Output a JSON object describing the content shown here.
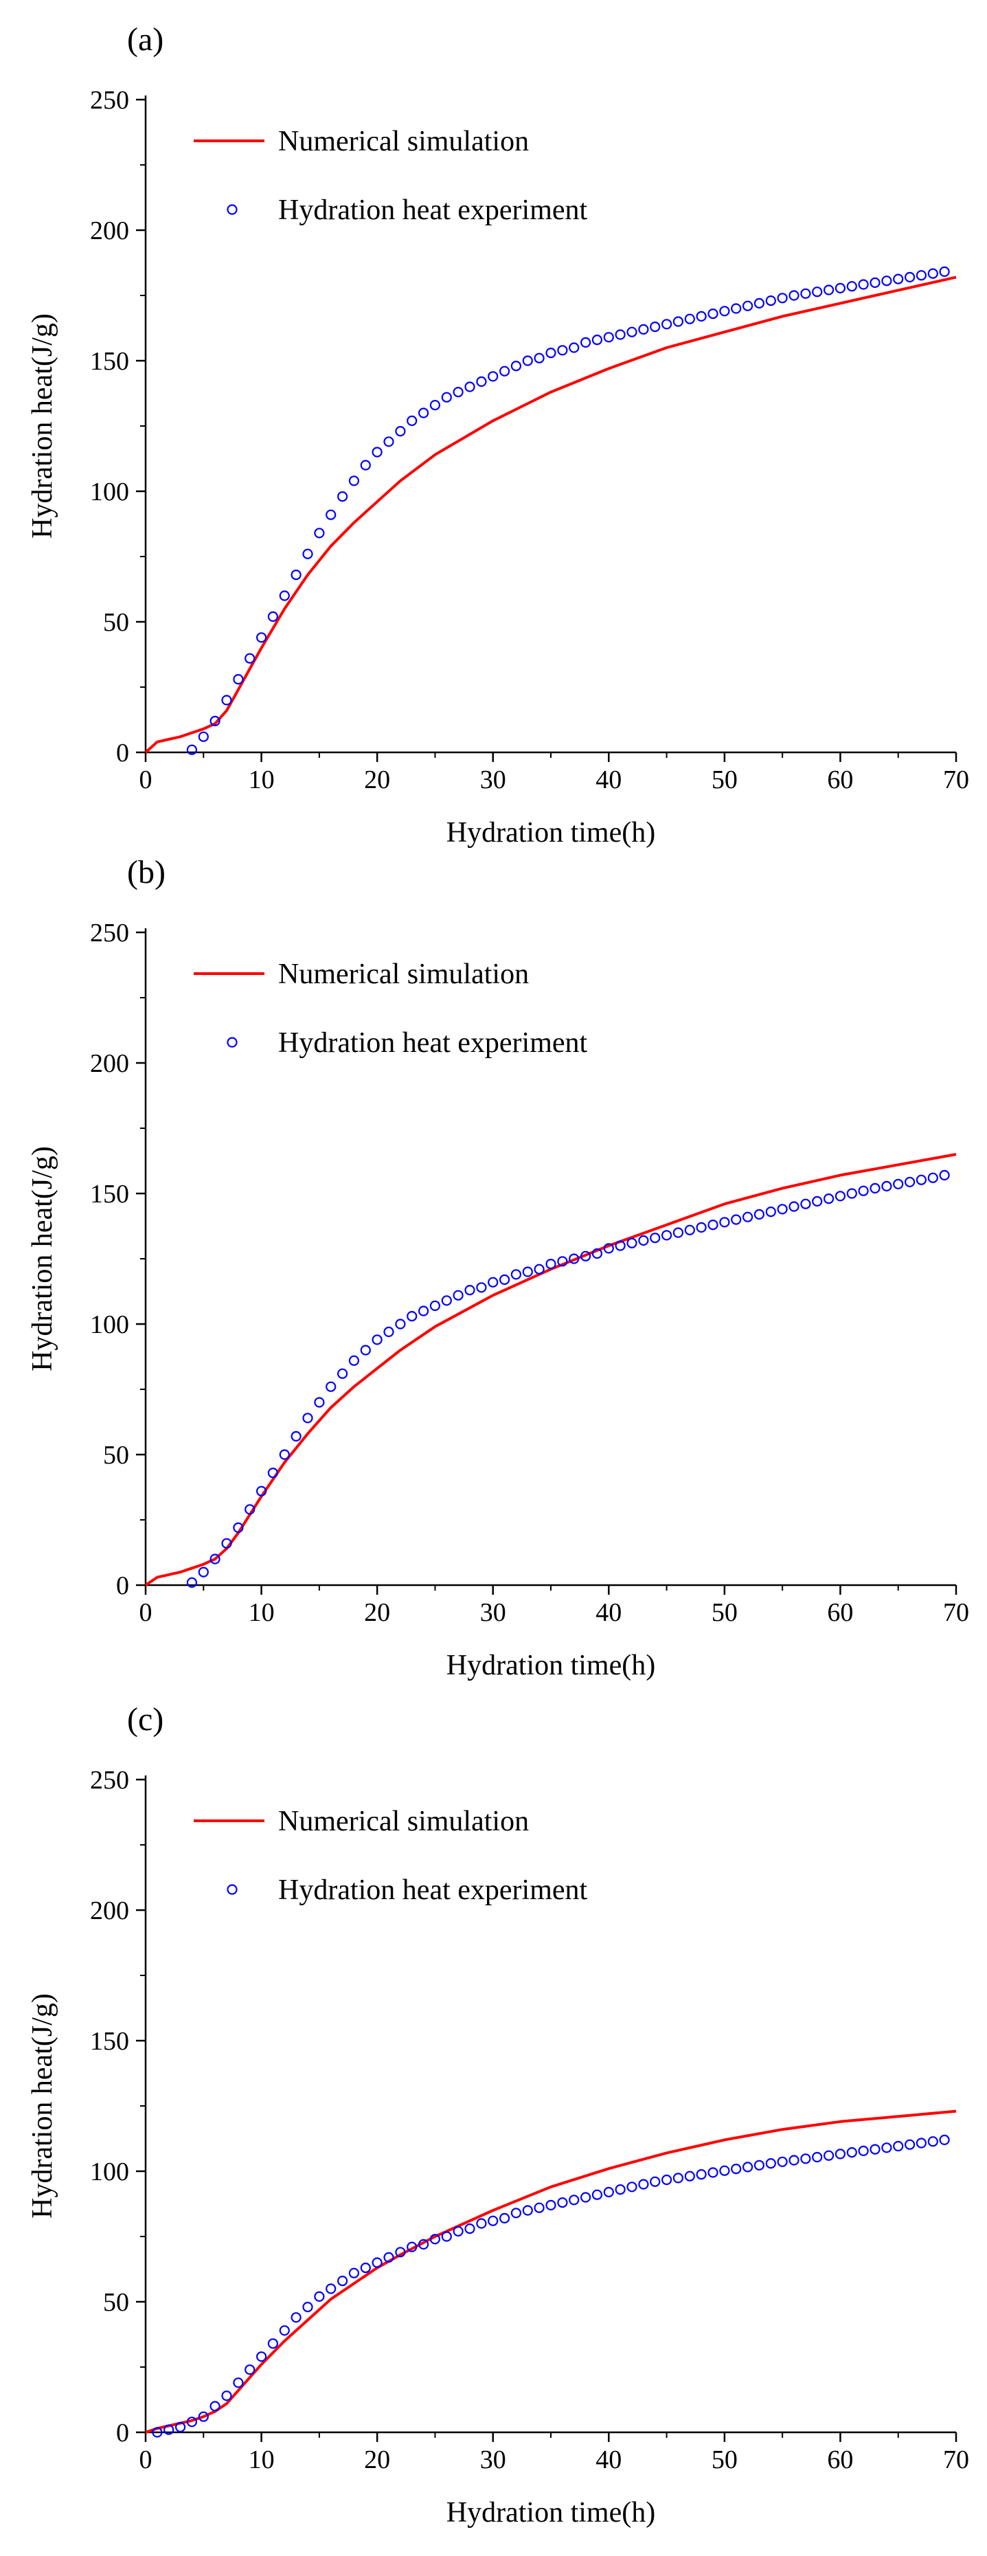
{
  "colors": {
    "simulation": "#ff0000",
    "experiment": "#0000ff",
    "axis": "#000000"
  },
  "chart_data": [
    {
      "panel_label": "(a)",
      "type": "line",
      "xlabel": "Hydration time(h)",
      "ylabel": "Hydration heat(J/g)",
      "xlim": [
        0,
        70
      ],
      "ylim": [
        0,
        250
      ],
      "xticks": [
        0,
        10,
        20,
        30,
        40,
        50,
        60,
        70
      ],
      "yticks": [
        0,
        50,
        100,
        150,
        200,
        250
      ],
      "legend_position": "top-left",
      "series": [
        {
          "name": "Numerical simulation",
          "style": "line",
          "x": [
            0,
            1,
            2,
            3,
            4,
            5,
            6,
            7,
            8,
            9,
            10,
            12,
            14,
            16,
            18,
            20,
            22,
            25,
            30,
            35,
            40,
            45,
            50,
            55,
            60,
            65,
            70
          ],
          "y": [
            0,
            4,
            5,
            6,
            7.5,
            9,
            11,
            16,
            24,
            32,
            40,
            55,
            68,
            79,
            88,
            96,
            104,
            114,
            127,
            138,
            147,
            155,
            161,
            167,
            172,
            177,
            182
          ]
        },
        {
          "name": "Hydration heat experiment",
          "style": "scatter",
          "x": [
            4,
            5,
            6,
            7,
            8,
            9,
            10,
            11,
            12,
            13,
            14,
            15,
            16,
            17,
            18,
            19,
            20,
            21,
            22,
            23,
            24,
            25,
            26,
            27,
            28,
            29,
            30,
            31,
            32,
            33,
            34,
            35,
            36,
            37,
            38,
            39,
            40,
            41,
            42,
            43,
            44,
            45,
            46,
            47,
            48,
            49,
            50,
            51,
            52,
            53,
            54,
            55,
            56,
            57,
            58,
            59,
            60,
            61,
            62,
            63,
            64,
            65,
            66,
            67,
            68,
            69
          ],
          "y": [
            1,
            6,
            12,
            20,
            28,
            36,
            44,
            52,
            60,
            68,
            76,
            84,
            91,
            98,
            104,
            110,
            115,
            119,
            123,
            127,
            130,
            133,
            136,
            138,
            140,
            142,
            144,
            146,
            148,
            150,
            151,
            153,
            154,
            155,
            157,
            158,
            159,
            160,
            161,
            162,
            163,
            164,
            165,
            166,
            167,
            168,
            169,
            170,
            171,
            172,
            173,
            174,
            175,
            175.7,
            176.4,
            177.1,
            177.8,
            178.5,
            179.2,
            179.9,
            180.6,
            181.3,
            182,
            182.7,
            183.4,
            184.1
          ]
        }
      ]
    },
    {
      "panel_label": "(b)",
      "type": "line",
      "xlabel": "Hydration time(h)",
      "ylabel": "Hydration heat(J/g)",
      "xlim": [
        0,
        70
      ],
      "ylim": [
        0,
        250
      ],
      "xticks": [
        0,
        10,
        20,
        30,
        40,
        50,
        60,
        70
      ],
      "yticks": [
        0,
        50,
        100,
        150,
        200,
        250
      ],
      "legend_position": "top-left",
      "series": [
        {
          "name": "Numerical simulation",
          "style": "line",
          "x": [
            0,
            1,
            2,
            3,
            4,
            5,
            6,
            7,
            8,
            9,
            10,
            12,
            14,
            16,
            18,
            20,
            22,
            25,
            30,
            35,
            40,
            45,
            50,
            55,
            60,
            65,
            70
          ],
          "y": [
            0,
            3,
            4,
            5,
            6.5,
            8,
            10,
            14,
            20,
            27,
            34,
            47,
            58,
            68,
            76,
            83,
            90,
            99,
            111,
            121,
            130,
            138,
            146,
            152,
            157,
            161,
            165
          ]
        },
        {
          "name": "Hydration heat experiment",
          "style": "scatter",
          "x": [
            4,
            5,
            6,
            7,
            8,
            9,
            10,
            11,
            12,
            13,
            14,
            15,
            16,
            17,
            18,
            19,
            20,
            21,
            22,
            23,
            24,
            25,
            26,
            27,
            28,
            29,
            30,
            31,
            32,
            33,
            34,
            35,
            36,
            37,
            38,
            39,
            40,
            41,
            42,
            43,
            44,
            45,
            46,
            47,
            48,
            49,
            50,
            51,
            52,
            53,
            54,
            55,
            56,
            57,
            58,
            59,
            60,
            61,
            62,
            63,
            64,
            65,
            66,
            67,
            68,
            69
          ],
          "y": [
            1,
            5,
            10,
            16,
            22,
            29,
            36,
            43,
            50,
            57,
            64,
            70,
            76,
            81,
            86,
            90,
            94,
            97,
            100,
            103,
            105,
            107,
            109,
            111,
            113,
            114,
            116,
            117,
            119,
            120,
            121,
            123,
            124,
            125,
            126,
            127,
            129,
            130,
            131,
            132,
            133,
            134,
            135,
            136,
            137,
            138,
            139,
            140,
            141,
            142,
            143,
            144,
            145,
            146,
            147,
            148,
            149,
            150,
            151,
            152,
            152.8,
            153.6,
            154.4,
            155.2,
            156,
            157
          ]
        }
      ]
    },
    {
      "panel_label": "(c)",
      "type": "line",
      "xlabel": "Hydration time(h)",
      "ylabel": "Hydration heat(J/g)",
      "xlim": [
        0,
        70
      ],
      "ylim": [
        0,
        250
      ],
      "xticks": [
        0,
        10,
        20,
        30,
        40,
        50,
        60,
        70
      ],
      "yticks": [
        0,
        50,
        100,
        150,
        200,
        250
      ],
      "legend_position": "top-left",
      "series": [
        {
          "name": "Numerical simulation",
          "style": "line",
          "x": [
            0,
            1,
            2,
            3,
            4,
            5,
            6,
            7,
            8,
            9,
            10,
            12,
            14,
            16,
            18,
            20,
            22,
            25,
            30,
            35,
            40,
            45,
            50,
            55,
            60,
            65,
            70
          ],
          "y": [
            0,
            1.5,
            2.5,
            3.5,
            4.5,
            6,
            8,
            11,
            16,
            21,
            26,
            35,
            43,
            51,
            57,
            63,
            68,
            75,
            85,
            94,
            101,
            107,
            112,
            116,
            119,
            121,
            123
          ]
        },
        {
          "name": "Hydration heat experiment",
          "style": "scatter",
          "x": [
            1,
            2,
            3,
            4,
            5,
            6,
            7,
            8,
            9,
            10,
            11,
            12,
            13,
            14,
            15,
            16,
            17,
            18,
            19,
            20,
            21,
            22,
            23,
            24,
            25,
            26,
            27,
            28,
            29,
            30,
            31,
            32,
            33,
            34,
            35,
            36,
            37,
            38,
            39,
            40,
            41,
            42,
            43,
            44,
            45,
            46,
            47,
            48,
            49,
            50,
            51,
            52,
            53,
            54,
            55,
            56,
            57,
            58,
            59,
            60,
            61,
            62,
            63,
            64,
            65,
            66,
            67,
            68,
            69
          ],
          "y": [
            0,
            1,
            2,
            4,
            6,
            10,
            14,
            19,
            24,
            29,
            34,
            39,
            44,
            48,
            52,
            55,
            58,
            61,
            63,
            65,
            67,
            69,
            71,
            72,
            74,
            75,
            77,
            78,
            80,
            81,
            82,
            84,
            85,
            86,
            87,
            88,
            89,
            90,
            91,
            92,
            93,
            94,
            95,
            96,
            96.7,
            97.4,
            98.1,
            98.8,
            99.5,
            100.2,
            100.9,
            101.6,
            102.3,
            103,
            103.6,
            104.2,
            104.8,
            105.4,
            106,
            106.6,
            107.2,
            107.8,
            108.4,
            109,
            109.6,
            110.2,
            110.8,
            111.4,
            112
          ]
        }
      ]
    }
  ]
}
